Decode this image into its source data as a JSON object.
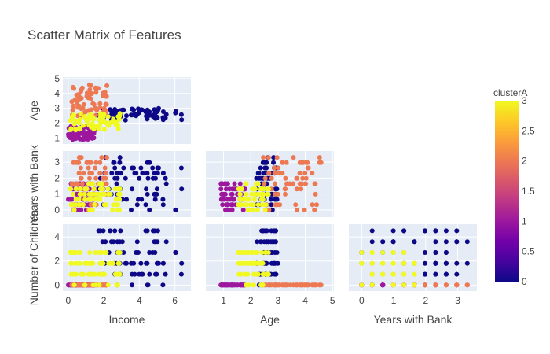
{
  "chart_data": {
    "type": "scatter",
    "title": "Scatter Matrix of Features",
    "dimensions": [
      "Income",
      "Age",
      "Years with Bank",
      "Number of Children"
    ],
    "x_axis_titles": [
      "Income",
      "Age",
      "Years with Bank"
    ],
    "y_axis_titles": [
      "Age",
      "Years with Bank",
      "Number of Children"
    ],
    "x_ranges": {
      "Income": [
        -0.3,
        6.9
      ],
      "Age": [
        0.35,
        5.05
      ],
      "Years with Bank": [
        -0.4,
        3.6
      ]
    },
    "y_ranges": {
      "Age": [
        0.6,
        5.1
      ],
      "Years with Bank": [
        -0.45,
        3.7
      ],
      "Number of Children": [
        -0.5,
        5.05
      ]
    },
    "x_ticks": {
      "Income": [
        0,
        2,
        4,
        6
      ],
      "Age": [
        1,
        2,
        3,
        4,
        5
      ],
      "Years with Bank": [
        0,
        1,
        2,
        3
      ]
    },
    "y_ticks": {
      "Age": [
        1,
        2,
        3,
        4,
        5
      ],
      "Years with Bank": [
        0,
        1,
        2,
        3
      ],
      "Number of Children": [
        0,
        2,
        4
      ]
    },
    "lower_triangle_only": true,
    "grid": true,
    "background": "#e5ecf6",
    "colorbar": {
      "title": "clusterA",
      "range": [
        0,
        3
      ],
      "ticks": [
        0,
        0.5,
        1,
        1.5,
        2,
        2.5,
        3
      ],
      "tick_labels": [
        "0",
        "0.5",
        "1",
        "1.5",
        "2",
        "2.5",
        "3"
      ],
      "colorscale": [
        "#0d0887",
        "#46039f",
        "#7201a8",
        "#9c179e",
        "#bd3786",
        "#d8576b",
        "#ed7953",
        "#fb9f3a",
        "#fdca26",
        "#f0f921"
      ]
    },
    "clusters": [
      {
        "value": 0,
        "color": "#0d0887",
        "income": [
          1.5,
          6.5
        ],
        "age": [
          2.2,
          3.0
        ],
        "years": [
          0,
          3.3
        ],
        "children": [
          0,
          4.5
        ]
      },
      {
        "value": 1,
        "color": "#9c179e",
        "income": [
          0.0,
          1.5
        ],
        "age": [
          0.9,
          1.8
        ],
        "years": [
          0,
          1.8
        ],
        "children": [
          0,
          0
        ]
      },
      {
        "value": 2,
        "color": "#ed7953",
        "income": [
          0.2,
          2.2
        ],
        "age": [
          2.4,
          4.6
        ],
        "years": [
          0,
          3.4
        ],
        "children": [
          0,
          0
        ]
      },
      {
        "value": 3,
        "color": "#f0f921",
        "income": [
          0.1,
          3.0
        ],
        "age": [
          1.5,
          2.7
        ],
        "years": [
          0,
          1.6
        ],
        "children": [
          0,
          2.7
        ]
      }
    ]
  }
}
